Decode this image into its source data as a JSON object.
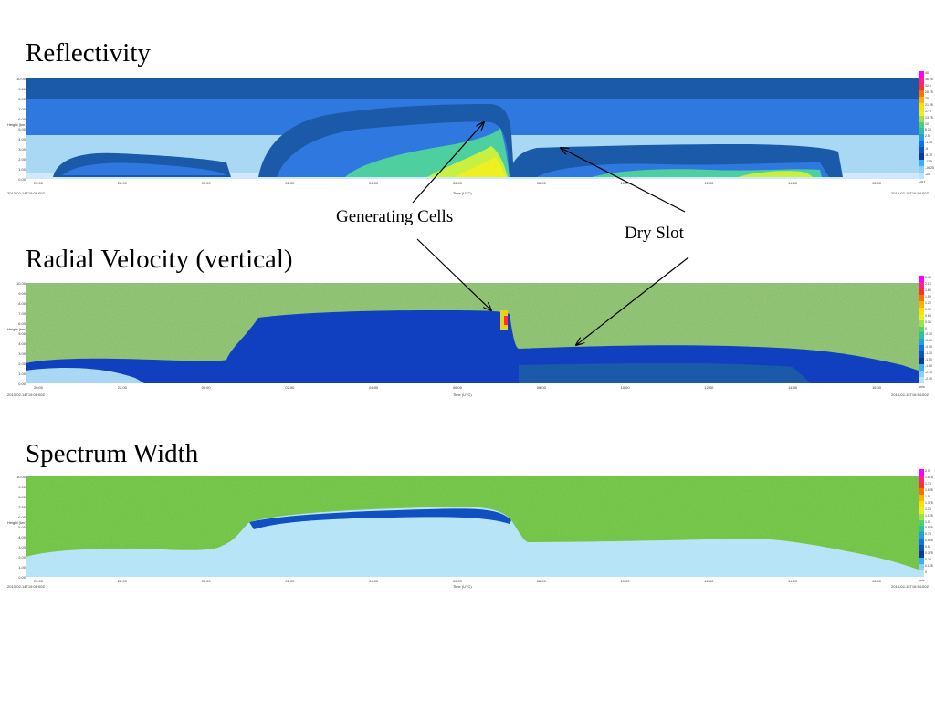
{
  "titles": {
    "reflectivity": "Reflectivity",
    "velocity": "Radial Velocity (vertical)",
    "width": "Spectrum Width"
  },
  "annotations": {
    "generating_cells": "Generating Cells",
    "dry_slot": "Dry Slot"
  },
  "chart_data": [
    {
      "type": "heatmap",
      "title": "Reflectivity",
      "ylabel": "Height (km)",
      "xlabel": "Time (UTC)",
      "y_ticks": [
        "10.00",
        "9.00",
        "8.00",
        "7.00",
        "6.00",
        "5.00",
        "4.00",
        "3.00",
        "2.00",
        "1.00",
        "0.00"
      ],
      "x_ticks": [
        "20:00",
        "22:00",
        "00:00",
        "02:00",
        "04:00",
        "06:00",
        "08:00",
        "10:00",
        "12:00",
        "14:00",
        "16:00"
      ],
      "start_time": "2013-02-14T19:06:00Z",
      "end_time": "2013-02-15T16:54:00Z",
      "colorbar_unit": "dBZ",
      "colorbar_ticks": [
        "40",
        "36.25",
        "32.5",
        "28.75",
        "25",
        "21.25",
        "17.5",
        "13.75",
        "10",
        "6.25",
        "2.5",
        "-1.25",
        "-5",
        "-8.75",
        "-12.5",
        "-16.25",
        "-20"
      ],
      "colorbar_colors": [
        "#ff00ff",
        "#ff2090",
        "#ff3030",
        "#ff7000",
        "#ffb000",
        "#ffe000",
        "#e8f020",
        "#a0e050",
        "#50d070",
        "#30c0a0",
        "#20a0e0",
        "#1070f0",
        "#1050c0",
        "#0a3a9a",
        "#3ab0f0",
        "#8fd0f0",
        "#b8e4f8"
      ]
    },
    {
      "type": "heatmap",
      "title": "Radial Velocity (vertical)",
      "ylabel": "Height (km)",
      "xlabel": "Time (UTC)",
      "y_ticks": [
        "10.00",
        "9.00",
        "8.00",
        "7.00",
        "6.00",
        "5.00",
        "4.00",
        "3.00",
        "2.00",
        "1.00",
        "0.00"
      ],
      "x_ticks": [
        "20:00",
        "22:00",
        "00:00",
        "02:00",
        "04:00",
        "06:00",
        "08:00",
        "10:00",
        "12:00",
        "14:00",
        "16:00"
      ],
      "start_time": "2013-02-14T19:06:00Z",
      "end_time": "2013-02-15T16:54:00Z",
      "colorbar_unit": "m/s",
      "colorbar_ticks": [
        "2.40",
        "2.10",
        "1.80",
        "1.50",
        "1.20",
        "0.90",
        "0.60",
        "0.30",
        "0",
        "-0.30",
        "-0.60",
        "-0.90",
        "-1.20",
        "-1.50",
        "-1.80",
        "-2.10",
        "-2.40"
      ],
      "colorbar_colors": [
        "#ff00ff",
        "#ff2090",
        "#ff3030",
        "#ff7000",
        "#ffb000",
        "#ffe000",
        "#e8f020",
        "#a0e050",
        "#50d070",
        "#30c0a0",
        "#20a0e0",
        "#1070f0",
        "#1050c0",
        "#0a3a9a",
        "#3ab0f0",
        "#8fd0f0",
        "#b8e4f8"
      ]
    },
    {
      "type": "heatmap",
      "title": "Spectrum Width",
      "ylabel": "Height (km)",
      "xlabel": "Time (UTC)",
      "y_ticks": [
        "10.00",
        "9.00",
        "8.00",
        "7.00",
        "6.00",
        "5.00",
        "4.00",
        "3.00",
        "2.00",
        "1.00",
        "0.00"
      ],
      "x_ticks": [
        "20:00",
        "22:00",
        "00:00",
        "02:00",
        "04:00",
        "06:00",
        "08:00",
        "10:00",
        "12:00",
        "14:00",
        "16:00"
      ],
      "start_time": "2013-02-14T19:06:00Z",
      "end_time": "2013-02-15T16:54:00Z",
      "colorbar_unit": "m/s",
      "colorbar_ticks": [
        "2.0",
        "1.875",
        "1.75",
        "1.625",
        "1.5",
        "1.375",
        "1.25",
        "1.125",
        "1.0",
        "0.875",
        "0.75",
        "0.625",
        "0.5",
        "0.375",
        "0.25",
        "0.125",
        "0"
      ],
      "colorbar_colors": [
        "#ff00ff",
        "#ff2090",
        "#ff3030",
        "#ff7000",
        "#ffb000",
        "#ffe000",
        "#e8f020",
        "#a0e050",
        "#50d070",
        "#30c0a0",
        "#20a0e0",
        "#1070f0",
        "#1050c0",
        "#0a3a9a",
        "#3ab0f0",
        "#8fd0f0",
        "#b8e4f8"
      ]
    }
  ]
}
